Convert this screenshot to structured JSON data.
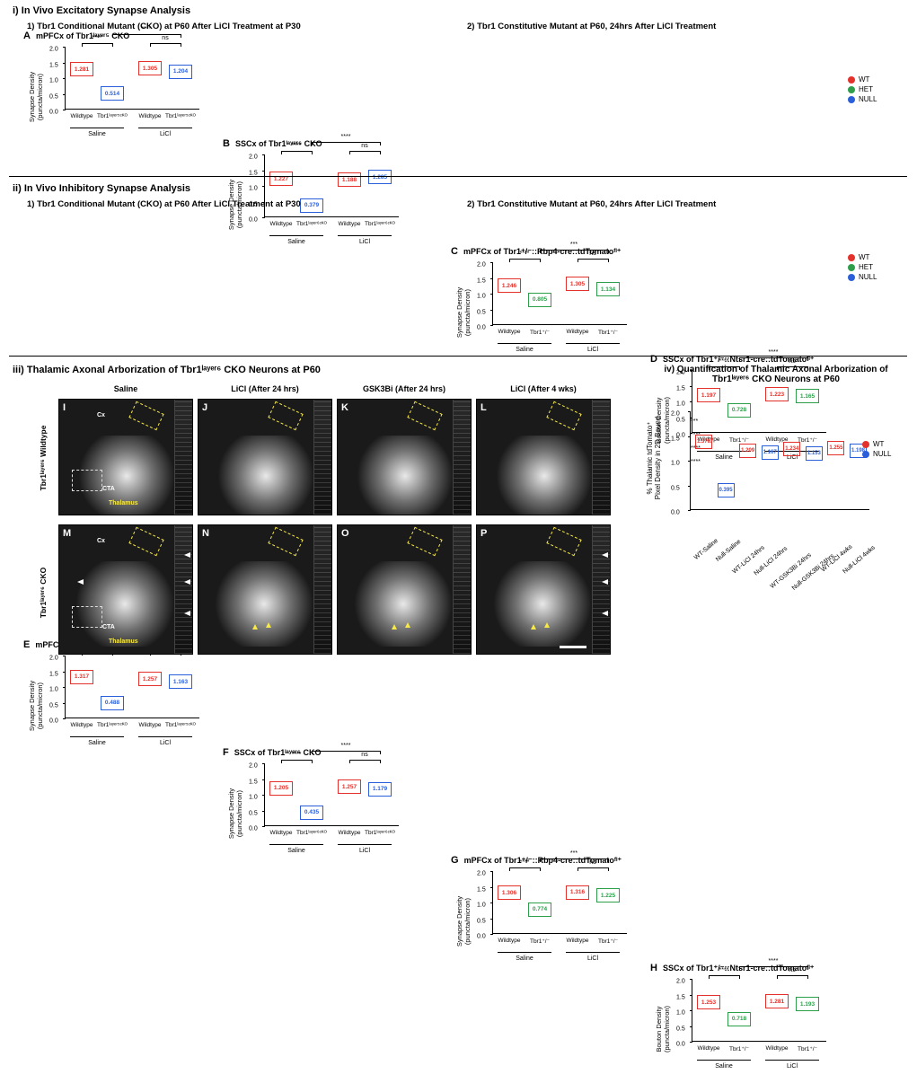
{
  "colors": {
    "wt": "#e4312b",
    "het": "#2e9e4b",
    "null": "#2b5fd9",
    "bg": "#ffffff",
    "axis": "#000000",
    "yellow": "#f7e948"
  },
  "legend_main": {
    "items": [
      "WT",
      "HET",
      "NULL"
    ]
  },
  "legend_iv": {
    "items": [
      "WT",
      "NULL"
    ]
  },
  "section_i": {
    "title": "i) In Vivo Excitatory Synapse Analysis",
    "sub1": "1) Tbr1 Conditional Mutant (CKO) at P60 After LiCl Treatment at P30",
    "sub2": "2) Tbr1 Constitutive Mutant at P60, 24hrs After LiCl Treatment"
  },
  "section_ii": {
    "title": "ii) In Vivo Inhibitory Synapse Analysis",
    "sub1": "1) Tbr1 Conditional Mutant (CKO) at P60 After LiCl Treatment at P30",
    "sub2": "2) Tbr1 Constitutive Mutant at P60, 24hrs After LiCl Treatment"
  },
  "section_iii": {
    "title": "iii) Thalamic Axonal Arborization of Tbr1ˡᵃʸᵉʳ⁶ CKO Neurons at P60"
  },
  "section_iv": {
    "title": "iv) Quantification of Thalamic Axonal Arborization of Tbr1ˡᵃʸᵉʳ⁶ CKO Neurons at P60"
  },
  "charts": {
    "A": {
      "letter": "A",
      "title": "mPFCx of Tbr1ˡᵃʸᵉʳ⁵ CKO",
      "ylab": "Synapse Density\n(puncta/micron)",
      "ylim": [
        0,
        2.0
      ],
      "ytick_step": 0.5,
      "groups": [
        "Saline",
        "LiCl"
      ],
      "xcats": [
        "Wildtype",
        "Tbr1ˡᵃʸᵉʳ⁵ᶜᴷᴼ",
        "Wildtype",
        "Tbr1ˡᵃʸᵉʳ⁵ᶜᴷᴼ"
      ],
      "boxes": [
        {
          "v": 1.281,
          "c": "wt"
        },
        {
          "v": 0.514,
          "c": "null"
        },
        {
          "v": 1.305,
          "c": "wt"
        },
        {
          "v": 1.204,
          "c": "null"
        }
      ],
      "sigs": [
        {
          "a": 0,
          "b": 1,
          "label": "****"
        },
        {
          "a": 1,
          "b": 3,
          "label": "****",
          "high": true
        },
        {
          "a": 2,
          "b": 3,
          "label": "ns"
        }
      ]
    },
    "B": {
      "letter": "B",
      "title": "SSCx of Tbr1ˡᵃʸᵉʳ⁶ CKO",
      "ylab": "Synapse Density\n(puncta/micron)",
      "ylim": [
        0,
        2.0
      ],
      "ytick_step": 0.5,
      "groups": [
        "Saline",
        "LiCl"
      ],
      "xcats": [
        "Wildtype",
        "Tbr1ˡᵃʸᵉʳ⁶ᶜᴷᴼ",
        "Wildtype",
        "Tbr1ˡᵃʸᵉʳ⁶ᶜᴷᴼ"
      ],
      "boxes": [
        {
          "v": 1.227,
          "c": "wt"
        },
        {
          "v": 0.379,
          "c": "null"
        },
        {
          "v": 1.188,
          "c": "wt"
        },
        {
          "v": 1.285,
          "c": "null"
        }
      ],
      "sigs": [
        {
          "a": 0,
          "b": 1,
          "label": "****"
        },
        {
          "a": 1,
          "b": 3,
          "label": "****",
          "high": true
        },
        {
          "a": 2,
          "b": 3,
          "label": "ns"
        }
      ]
    },
    "C": {
      "letter": "C",
      "title": "mPFCx of Tbr1⁺/⁻::Rbp4-cre::tdTomatoᶠˡ⁺",
      "ylab": "Synapse Density\n(puncta/micron)",
      "ylim": [
        0,
        2.0
      ],
      "ytick_step": 0.5,
      "groups": [
        "Saline",
        "LiCl"
      ],
      "xcats": [
        "Wildtype",
        "Tbr1⁺/⁻",
        "Wildtype",
        "Tbr1⁺/⁻"
      ],
      "boxes": [
        {
          "v": 1.246,
          "c": "wt"
        },
        {
          "v": 0.805,
          "c": "het"
        },
        {
          "v": 1.305,
          "c": "wt"
        },
        {
          "v": 1.134,
          "c": "het"
        }
      ],
      "sigs": [
        {
          "a": 0,
          "b": 1,
          "label": "****"
        },
        {
          "a": 1,
          "b": 3,
          "label": "***",
          "high": true
        },
        {
          "a": 2,
          "b": 3,
          "label": "ns"
        }
      ]
    },
    "D": {
      "letter": "D",
      "title": "SSCx of Tbr1⁺/⁻::Ntsr1-cre::tdTomatoᶠˡ⁺",
      "ylab": "Bouton Density\n(puncta/micron)",
      "ylim": [
        0,
        2.0
      ],
      "ytick_step": 0.5,
      "groups": [
        "Saline",
        "LiCl"
      ],
      "xcats": [
        "Wildtype",
        "Tbr1⁺/⁻",
        "Wildtype",
        "Tbr1⁺/⁻"
      ],
      "boxes": [
        {
          "v": 1.197,
          "c": "wt"
        },
        {
          "v": 0.728,
          "c": "het"
        },
        {
          "v": 1.223,
          "c": "wt"
        },
        {
          "v": 1.165,
          "c": "het"
        }
      ],
      "sigs": [
        {
          "a": 0,
          "b": 1,
          "label": "****"
        },
        {
          "a": 1,
          "b": 3,
          "label": "****",
          "high": true
        },
        {
          "a": 2,
          "b": 3,
          "label": "ns"
        }
      ]
    },
    "E": {
      "letter": "E",
      "title": "mPFCx of Tbr1ˡᵃʸᵉʳ⁵ CKO",
      "ylab": "Synapse Density\n(puncta/micron)",
      "ylim": [
        0,
        2.0
      ],
      "ytick_step": 0.5,
      "groups": [
        "Saline",
        "LiCl"
      ],
      "xcats": [
        "Wildtype",
        "Tbr1ˡᵃʸᵉʳ⁵ᶜᴷᴼ",
        "Wildtype",
        "Tbr1ˡᵃʸᵉʳ⁵ᶜᴷᴼ"
      ],
      "boxes": [
        {
          "v": 1.317,
          "c": "wt"
        },
        {
          "v": 0.488,
          "c": "null"
        },
        {
          "v": 1.257,
          "c": "wt"
        },
        {
          "v": 1.163,
          "c": "null"
        }
      ],
      "sigs": [
        {
          "a": 0,
          "b": 1,
          "label": "****"
        },
        {
          "a": 1,
          "b": 3,
          "label": "****",
          "high": true
        },
        {
          "a": 2,
          "b": 3,
          "label": "ns"
        }
      ]
    },
    "F": {
      "letter": "F",
      "title": "SSCx of Tbr1ˡᵃʸᵉʳ⁶ CKO",
      "ylab": "Synapse Density\n(puncta/micron)",
      "ylim": [
        0,
        2.0
      ],
      "ytick_step": 0.5,
      "groups": [
        "Saline",
        "LiCl"
      ],
      "xcats": [
        "Wildtype",
        "Tbr1ˡᵃʸᵉʳ⁶ᶜᴷᴼ",
        "Wildtype",
        "Tbr1ˡᵃʸᵉʳ⁶ᶜᴷᴼ"
      ],
      "boxes": [
        {
          "v": 1.205,
          "c": "wt"
        },
        {
          "v": 0.435,
          "c": "null"
        },
        {
          "v": 1.257,
          "c": "wt"
        },
        {
          "v": 1.179,
          "c": "null"
        }
      ],
      "sigs": [
        {
          "a": 0,
          "b": 1,
          "label": "****"
        },
        {
          "a": 1,
          "b": 3,
          "label": "****",
          "high": true
        },
        {
          "a": 2,
          "b": 3,
          "label": "ns"
        }
      ]
    },
    "G": {
      "letter": "G",
      "title": "mPFCx of Tbr1⁺/⁻::Rbp4-cre::tdTomatoᶠˡ⁺",
      "ylab": "Synapse Density\n(puncta/micron)",
      "ylim": [
        0,
        2.0
      ],
      "ytick_step": 0.5,
      "groups": [
        "Saline",
        "LiCl"
      ],
      "xcats": [
        "Wildtype",
        "Tbr1⁺/⁻",
        "Wildtype",
        "Tbr1⁺/⁻"
      ],
      "boxes": [
        {
          "v": 1.306,
          "c": "wt"
        },
        {
          "v": 0.774,
          "c": "het"
        },
        {
          "v": 1.316,
          "c": "wt"
        },
        {
          "v": 1.225,
          "c": "het"
        }
      ],
      "sigs": [
        {
          "a": 0,
          "b": 1,
          "label": "****"
        },
        {
          "a": 1,
          "b": 3,
          "label": "***",
          "high": true
        },
        {
          "a": 2,
          "b": 3,
          "label": "ns"
        }
      ]
    },
    "H": {
      "letter": "H",
      "title": "SSCx of Tbr1⁺/⁻::Ntsr1-cre::tdTomatoᶠˡ⁺",
      "ylab": "Bouton Density\n(puncta/micron)",
      "ylim": [
        0,
        2.0
      ],
      "ytick_step": 0.5,
      "groups": [
        "Saline",
        "LiCl"
      ],
      "xcats": [
        "Wildtype",
        "Tbr1⁺/⁻",
        "Wildtype",
        "Tbr1⁺/⁻"
      ],
      "boxes": [
        {
          "v": 1.253,
          "c": "wt"
        },
        {
          "v": 0.718,
          "c": "het"
        },
        {
          "v": 1.281,
          "c": "wt"
        },
        {
          "v": 1.193,
          "c": "het"
        }
      ],
      "sigs": [
        {
          "a": 0,
          "b": 1,
          "label": "****"
        },
        {
          "a": 1,
          "b": 3,
          "label": "****",
          "high": true
        },
        {
          "a": 2,
          "b": 3,
          "label": "ns"
        }
      ]
    }
  },
  "images_iii": {
    "row_labels": [
      "Tbr1ˡᵃʸᵉʳ⁶ Wildtype",
      "Tbr1ˡᵃʸᵉʳ⁶ CKO"
    ],
    "col_labels": [
      "Saline",
      "LiCl (After 24 hrs)",
      "GSK3Bi (After 24 hrs)",
      "LiCl (After 4 wks)"
    ],
    "letters_top": [
      "I",
      "J",
      "K",
      "L"
    ],
    "letters_bot": [
      "M",
      "N",
      "O",
      "P"
    ],
    "ann": {
      "cx": "Cx",
      "cta": "CTA",
      "thal": "Thalamus"
    }
  },
  "chart_iv": {
    "ylab": "% Thalamic tdTomato⁺\nPixel Density in 2D Bound",
    "ylim": [
      0,
      2.0
    ],
    "ytick_step": 0.5,
    "xcats": [
      "WT-Saline",
      "Null-Saline",
      "WT-LiCl 24hrs",
      "Null-LiCl 24hrs",
      "WT-GSK3Bi 24hrs",
      "Null-GSK3Bi 24hrs",
      "WT-LiCl 4wks",
      "Null-LiCl 4wks"
    ],
    "boxes": [
      {
        "v": 1.378,
        "c": "wt"
      },
      {
        "v": 0.395,
        "c": "null"
      },
      {
        "v": 1.209,
        "c": "wt"
      },
      {
        "v": 1.167,
        "c": "null"
      },
      {
        "v": 1.234,
        "c": "wt"
      },
      {
        "v": 1.153,
        "c": "null"
      },
      {
        "v": 1.255,
        "c": "wt"
      },
      {
        "v": 1.198,
        "c": "null"
      }
    ],
    "sigs": [
      {
        "a": 0,
        "b": 1,
        "label": "***"
      },
      {
        "a": 1,
        "b": 3,
        "label": "****",
        "level": 1
      },
      {
        "a": 1,
        "b": 5,
        "label": "****",
        "level": 2
      },
      {
        "a": 1,
        "b": 7,
        "label": "****",
        "level": 3
      }
    ]
  }
}
